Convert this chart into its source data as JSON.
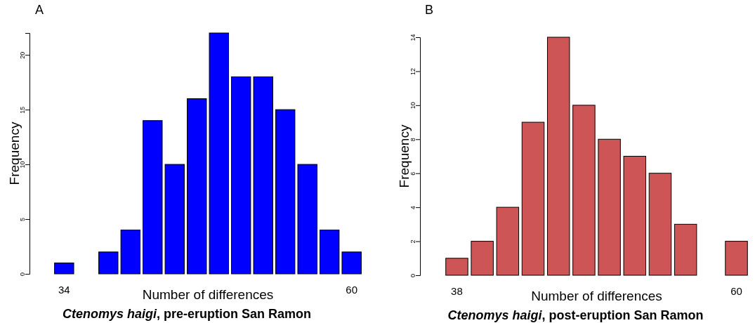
{
  "chart_data": [
    {
      "type": "bar",
      "title": "A",
      "xlabel": "Number of differences",
      "ylabel": "Frequency",
      "annotations": [
        "Ctenomys haigi, pre-eruption San Ramon"
      ],
      "categories": [
        "34",
        null,
        null,
        null,
        null,
        null,
        null,
        null,
        null,
        null,
        null,
        null,
        null,
        "60"
      ],
      "series": [
        {
          "color": "#0000ff",
          "values": [
            1,
            0,
            2,
            4,
            14,
            10,
            16,
            22,
            18,
            18,
            15,
            10,
            4,
            2
          ]
        }
      ],
      "ylim": [
        0,
        22
      ],
      "yticks": [
        0,
        5,
        10,
        15,
        20
      ],
      "grid": false
    },
    {
      "type": "bar",
      "title": "B",
      "xlabel": "Number of differences",
      "ylabel": "Frequency",
      "annotations": [
        "Ctenomys haigi, post-eruption San Ramon"
      ],
      "categories": [
        "38",
        null,
        null,
        null,
        null,
        null,
        null,
        null,
        null,
        null,
        null,
        "60"
      ],
      "series": [
        {
          "color": "#cd5555",
          "values": [
            1,
            2,
            4,
            9,
            14,
            10,
            8,
            7,
            6,
            3,
            0,
            2
          ]
        }
      ],
      "ylim": [
        0,
        14
      ],
      "yticks": [
        0,
        2,
        4,
        6,
        8,
        10,
        12,
        14
      ],
      "grid": false
    }
  ]
}
